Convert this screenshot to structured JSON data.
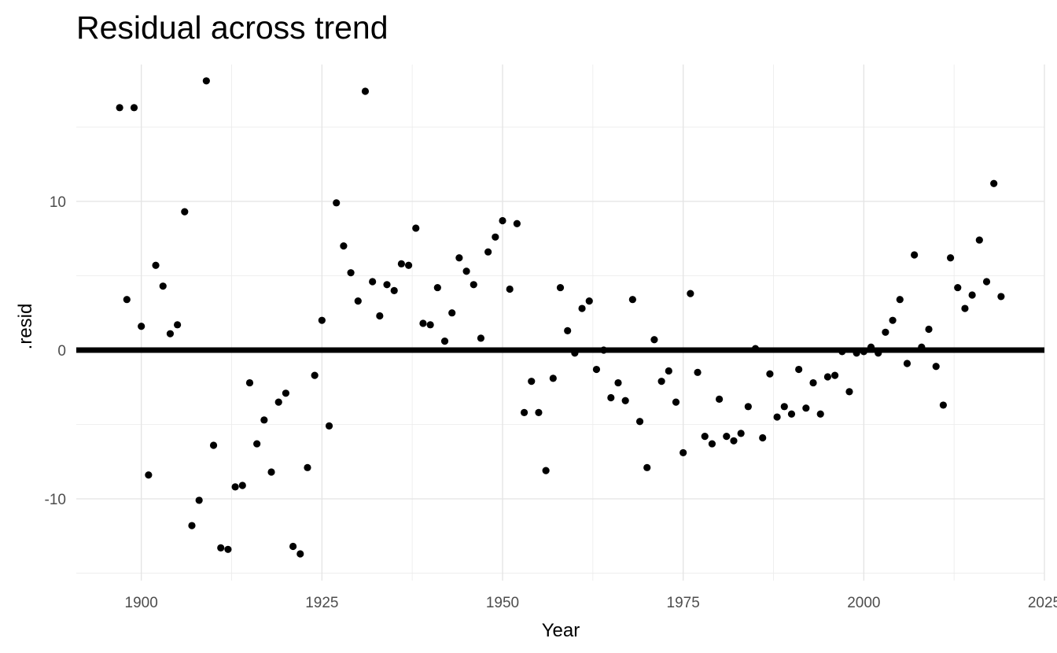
{
  "chart_data": {
    "type": "scatter",
    "title": "Residual across trend",
    "xlabel": "Year",
    "ylabel": ".resid",
    "xlim": [
      1891,
      2025
    ],
    "ylim": [
      -15.5,
      19.2
    ],
    "x_ticks": [
      1900,
      1925,
      1950,
      1975,
      2000,
      2025
    ],
    "x_tick_labels": [
      "1900",
      "1925",
      "1950",
      "1975",
      "2000",
      "2025"
    ],
    "y_ticks": [
      -10,
      0,
      10
    ],
    "y_tick_labels": [
      "-10",
      "0",
      "10"
    ],
    "grid": true,
    "reference_line": 0,
    "point_color": "#000000",
    "x": [
      1897,
      1898,
      1899,
      1900,
      1901,
      1902,
      1903,
      1904,
      1905,
      1906,
      1907,
      1908,
      1909,
      1910,
      1911,
      1912,
      1913,
      1914,
      1915,
      1916,
      1917,
      1918,
      1919,
      1920,
      1921,
      1922,
      1923,
      1924,
      1925,
      1926,
      1927,
      1928,
      1929,
      1930,
      1931,
      1932,
      1933,
      1934,
      1935,
      1936,
      1937,
      1938,
      1939,
      1940,
      1941,
      1942,
      1943,
      1944,
      1945,
      1946,
      1947,
      1948,
      1949,
      1950,
      1951,
      1952,
      1953,
      1954,
      1955,
      1956,
      1957,
      1958,
      1959,
      1960,
      1961,
      1962,
      1963,
      1964,
      1965,
      1966,
      1967,
      1968,
      1969,
      1970,
      1971,
      1972,
      1973,
      1974,
      1975,
      1976,
      1977,
      1978,
      1979,
      1980,
      1981,
      1982,
      1983,
      1984,
      1985,
      1986,
      1987,
      1988,
      1989,
      1990,
      1991,
      1992,
      1993,
      1994,
      1995,
      1996,
      1997,
      1998,
      1999,
      2000,
      2001,
      2002,
      2003,
      2004,
      2005,
      2006,
      2007,
      2008,
      2009,
      2010,
      2011,
      2012,
      2013,
      2014,
      2015,
      2016,
      2017,
      2018,
      2019
    ],
    "y": [
      16.3,
      3.4,
      16.3,
      1.6,
      -8.4,
      5.7,
      4.3,
      1.1,
      1.7,
      9.3,
      -11.8,
      -10.1,
      18.1,
      -6.4,
      -13.3,
      -13.4,
      -9.2,
      -9.1,
      -2.2,
      -6.3,
      -4.7,
      -8.2,
      -3.5,
      -2.9,
      -13.2,
      -13.7,
      -7.9,
      -1.7,
      2.0,
      -5.1,
      9.9,
      7.0,
      5.2,
      3.3,
      17.4,
      4.6,
      2.3,
      4.4,
      4.0,
      5.8,
      5.7,
      8.2,
      1.8,
      1.7,
      4.2,
      0.6,
      2.5,
      6.2,
      5.3,
      4.4,
      0.8,
      6.6,
      7.6,
      8.7,
      4.1,
      8.5,
      -4.2,
      -2.1,
      -4.2,
      -8.1,
      -1.9,
      4.2,
      1.3,
      -0.2,
      2.8,
      3.3,
      -1.3,
      0.0,
      -3.2,
      -2.2,
      -3.4,
      3.4,
      -4.8,
      -7.9,
      0.7,
      -2.1,
      -1.4,
      -3.5,
      -6.9,
      3.8,
      -1.5,
      -5.8,
      -6.3,
      -3.3,
      -5.8,
      -6.1,
      -5.6,
      -3.8,
      0.1,
      -5.9,
      -1.6,
      -4.5,
      -3.8,
      -4.3,
      -1.3,
      -3.9,
      -2.2,
      -4.3,
      -1.8,
      -1.7,
      -0.1,
      -2.8,
      -0.2,
      -0.1,
      0.2,
      -0.2,
      1.2,
      2.0,
      3.4,
      -0.9,
      6.4,
      0.2,
      1.4,
      -1.1,
      -3.7,
      6.2,
      4.2,
      2.8,
      3.7,
      7.4,
      4.6,
      11.2,
      3.6
    ]
  }
}
